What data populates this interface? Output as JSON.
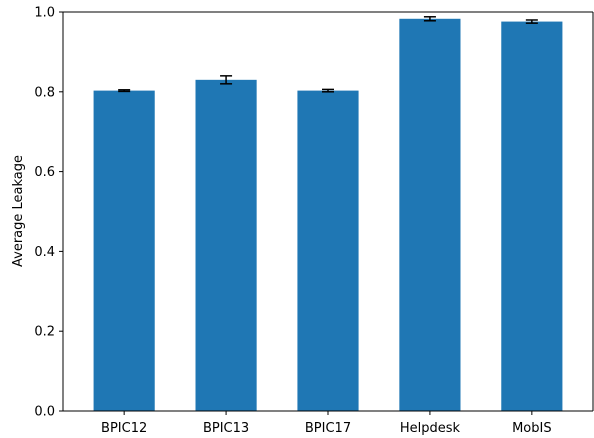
{
  "chart_data": {
    "type": "bar",
    "title": "",
    "xlabel": "",
    "ylabel": "Average Leakage",
    "categories": [
      "BPIC12",
      "BPIC13",
      "BPIC17",
      "Helpdesk",
      "MobIS"
    ],
    "values": [
      0.803,
      0.83,
      0.803,
      0.983,
      0.976
    ],
    "errors": [
      0.002,
      0.01,
      0.003,
      0.005,
      0.004
    ],
    "ylim": [
      0,
      1.0
    ],
    "yticks": [
      "0.0",
      "0.2",
      "0.4",
      "0.6",
      "0.8",
      "1.0"
    ],
    "ytick_values": [
      0,
      0.2,
      0.4,
      0.6,
      0.8,
      1.0
    ],
    "grid": false,
    "bar_color": "#1f77b4",
    "error_color": "#000000"
  }
}
